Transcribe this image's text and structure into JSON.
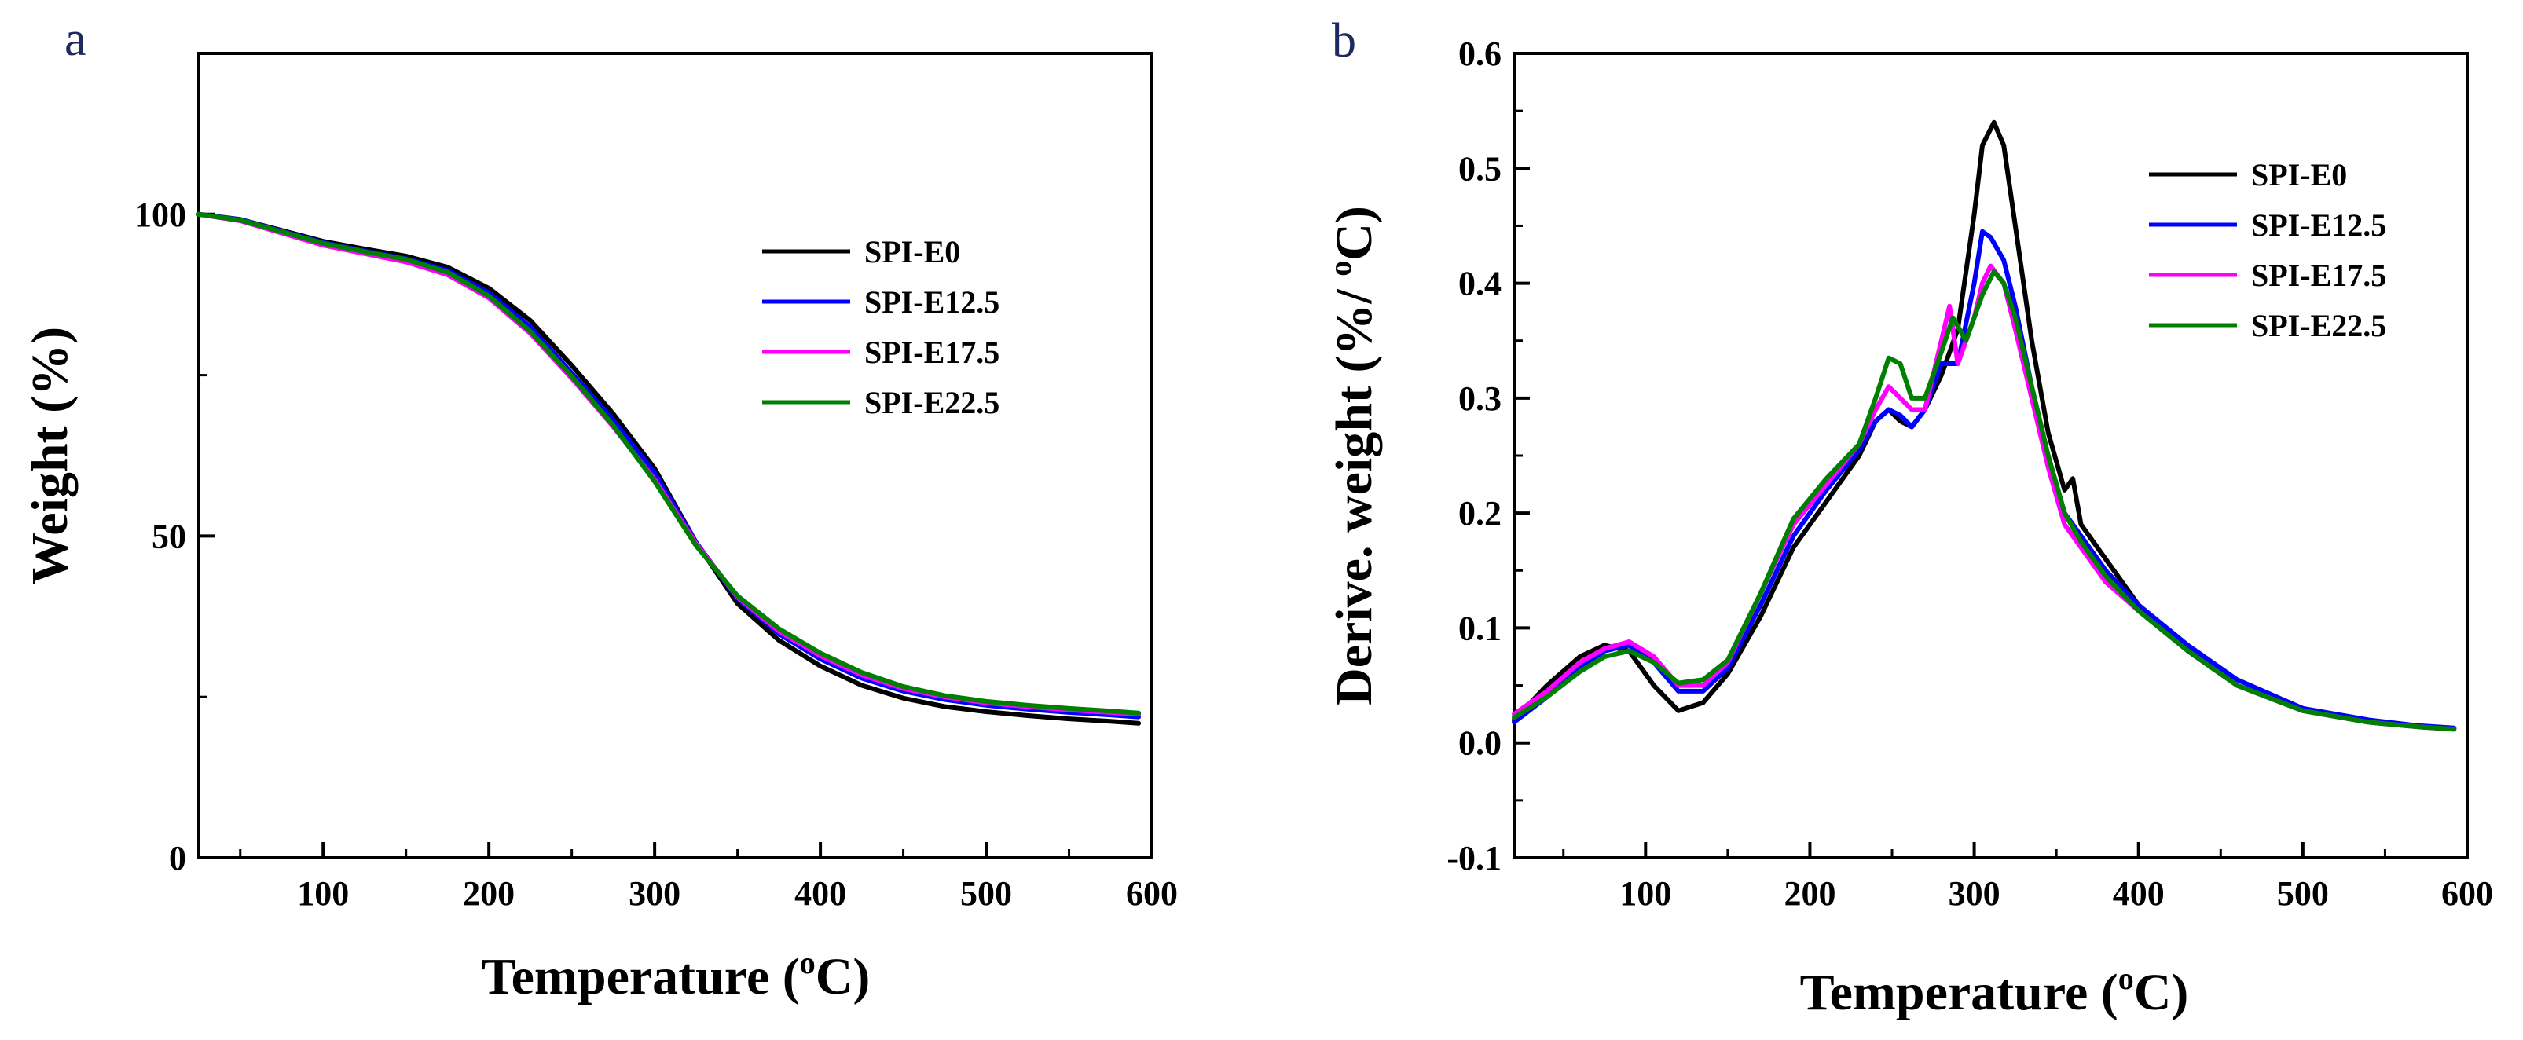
{
  "chart_data": [
    {
      "panel": "a",
      "type": "line",
      "title": "",
      "xlabel": "Temperature (",
      "xlabel_sup": "o",
      "xlabel_unit": "C)",
      "ylabel": "Weight (%)",
      "xlim": [
        25,
        600
      ],
      "ylim": [
        0,
        125
      ],
      "x_ticks": [
        100,
        200,
        300,
        400,
        500,
        600
      ],
      "y_ticks": [
        0,
        50,
        100
      ],
      "grid": false,
      "legend_position": "upper-right",
      "series": [
        {
          "name": "SPI-E0",
          "color": "#000000",
          "x": [
            25,
            50,
            75,
            100,
            125,
            150,
            175,
            200,
            225,
            250,
            275,
            300,
            325,
            350,
            375,
            400,
            425,
            450,
            475,
            500,
            525,
            550,
            575,
            592
          ],
          "y": [
            100,
            99.2,
            97.5,
            95.8,
            94.6,
            93.5,
            91.8,
            88.5,
            83.5,
            76.5,
            69.0,
            60.5,
            49.0,
            39.5,
            33.8,
            29.8,
            26.8,
            24.8,
            23.5,
            22.7,
            22.1,
            21.6,
            21.2,
            20.9
          ]
        },
        {
          "name": "SPI-E12.5",
          "color": "#0000ff",
          "x": [
            25,
            50,
            75,
            100,
            125,
            150,
            175,
            200,
            225,
            250,
            275,
            300,
            325,
            350,
            375,
            400,
            425,
            450,
            475,
            500,
            525,
            550,
            575,
            592
          ],
          "y": [
            100,
            99.2,
            97.4,
            95.6,
            94.3,
            93.1,
            91.3,
            87.8,
            82.5,
            75.3,
            68.0,
            59.8,
            49.0,
            40.3,
            34.8,
            30.9,
            27.9,
            25.9,
            24.6,
            23.7,
            23.1,
            22.6,
            22.2,
            21.9
          ]
        },
        {
          "name": "SPI-E17.5",
          "color": "#ff00ff",
          "x": [
            25,
            50,
            75,
            100,
            125,
            150,
            175,
            200,
            225,
            250,
            275,
            300,
            325,
            350,
            375,
            400,
            425,
            450,
            475,
            500,
            525,
            550,
            575,
            592
          ],
          "y": [
            100,
            99.0,
            97.1,
            95.2,
            93.9,
            92.6,
            90.6,
            87.0,
            81.5,
            74.5,
            67.0,
            58.8,
            48.8,
            40.5,
            35.2,
            31.4,
            28.4,
            26.3,
            25.0,
            24.1,
            23.5,
            23.0,
            22.6,
            22.3
          ]
        },
        {
          "name": "SPI-E22.5",
          "color": "#008000",
          "x": [
            25,
            50,
            75,
            100,
            125,
            150,
            175,
            200,
            225,
            250,
            275,
            300,
            325,
            350,
            375,
            400,
            425,
            450,
            475,
            500,
            525,
            550,
            575,
            592
          ],
          "y": [
            100,
            99.1,
            97.3,
            95.5,
            94.2,
            93.0,
            91.0,
            87.3,
            81.8,
            74.8,
            67.2,
            58.5,
            48.5,
            40.7,
            35.6,
            31.8,
            28.8,
            26.6,
            25.2,
            24.3,
            23.7,
            23.2,
            22.8,
            22.5
          ]
        }
      ]
    },
    {
      "panel": "b",
      "type": "line",
      "title": "",
      "xlabel": "Temperature (",
      "xlabel_sup": "o",
      "xlabel_unit": "C)",
      "ylabel": "Derive. weight (%/ ",
      "ylabel_sup": "o",
      "ylabel_unit": "C)",
      "xlim": [
        20,
        600
      ],
      "ylim": [
        -0.1,
        0.6
      ],
      "x_ticks": [
        100,
        200,
        300,
        400,
        500,
        600
      ],
      "y_ticks": [
        -0.1,
        0.0,
        0.1,
        0.2,
        0.3,
        0.4,
        0.5,
        0.6
      ],
      "y_tick_labels": [
        "-0.1",
        "0.0",
        "0.1",
        "0.2",
        "0.3",
        "0.4",
        "0.5",
        "0.6"
      ],
      "grid": false,
      "legend_position": "upper-right",
      "series": [
        {
          "name": "SPI-E0",
          "color": "#000000",
          "x": [
            20,
            40,
            60,
            75,
            90,
            105,
            120,
            135,
            150,
            170,
            190,
            210,
            230,
            240,
            248,
            255,
            262,
            270,
            280,
            290,
            300,
            305,
            312,
            318,
            325,
            335,
            345,
            355,
            360,
            365,
            380,
            400,
            430,
            460,
            500,
            540,
            570,
            592
          ],
          "y": [
            0.02,
            0.05,
            0.075,
            0.085,
            0.08,
            0.05,
            0.028,
            0.035,
            0.06,
            0.11,
            0.17,
            0.21,
            0.25,
            0.28,
            0.29,
            0.28,
            0.275,
            0.29,
            0.32,
            0.36,
            0.46,
            0.52,
            0.54,
            0.52,
            0.45,
            0.35,
            0.27,
            0.22,
            0.23,
            0.19,
            0.16,
            0.12,
            0.08,
            0.05,
            0.028,
            0.018,
            0.014,
            0.012
          ]
        },
        {
          "name": "SPI-E12.5",
          "color": "#0000ff",
          "x": [
            20,
            40,
            60,
            75,
            90,
            105,
            120,
            135,
            150,
            170,
            190,
            210,
            230,
            240,
            248,
            255,
            262,
            270,
            280,
            290,
            300,
            305,
            310,
            318,
            325,
            335,
            345,
            355,
            365,
            380,
            400,
            430,
            460,
            500,
            540,
            570,
            592
          ],
          "y": [
            0.018,
            0.04,
            0.065,
            0.08,
            0.085,
            0.07,
            0.045,
            0.045,
            0.065,
            0.12,
            0.18,
            0.22,
            0.255,
            0.28,
            0.29,
            0.285,
            0.275,
            0.29,
            0.33,
            0.33,
            0.4,
            0.445,
            0.44,
            0.42,
            0.38,
            0.31,
            0.25,
            0.2,
            0.18,
            0.15,
            0.12,
            0.085,
            0.055,
            0.03,
            0.02,
            0.015,
            0.013
          ]
        },
        {
          "name": "SPI-E17.5",
          "color": "#ff00ff",
          "x": [
            20,
            40,
            60,
            75,
            90,
            105,
            120,
            135,
            150,
            170,
            190,
            210,
            230,
            240,
            248,
            255,
            262,
            270,
            280,
            285,
            290,
            300,
            305,
            310,
            318,
            325,
            335,
            345,
            355,
            365,
            380,
            400,
            430,
            460,
            500,
            540,
            570,
            592
          ],
          "y": [
            0.025,
            0.045,
            0.07,
            0.082,
            0.088,
            0.075,
            0.05,
            0.05,
            0.07,
            0.13,
            0.19,
            0.225,
            0.26,
            0.29,
            0.31,
            0.3,
            0.29,
            0.29,
            0.35,
            0.38,
            0.33,
            0.37,
            0.4,
            0.415,
            0.4,
            0.36,
            0.3,
            0.24,
            0.19,
            0.17,
            0.14,
            0.115,
            0.08,
            0.05,
            0.028,
            0.018,
            0.014,
            0.012
          ]
        },
        {
          "name": "SPI-E22.5",
          "color": "#008000",
          "x": [
            20,
            40,
            60,
            75,
            90,
            105,
            120,
            135,
            150,
            170,
            190,
            210,
            230,
            240,
            248,
            255,
            262,
            270,
            280,
            287,
            295,
            305,
            312,
            318,
            325,
            335,
            345,
            355,
            365,
            380,
            400,
            430,
            460,
            500,
            540,
            570,
            592
          ],
          "y": [
            0.022,
            0.04,
            0.062,
            0.075,
            0.08,
            0.07,
            0.052,
            0.055,
            0.072,
            0.13,
            0.195,
            0.23,
            0.26,
            0.3,
            0.335,
            0.33,
            0.3,
            0.3,
            0.34,
            0.37,
            0.35,
            0.39,
            0.41,
            0.4,
            0.37,
            0.31,
            0.25,
            0.2,
            0.175,
            0.145,
            0.115,
            0.08,
            0.05,
            0.028,
            0.018,
            0.014,
            0.012
          ]
        }
      ]
    }
  ]
}
